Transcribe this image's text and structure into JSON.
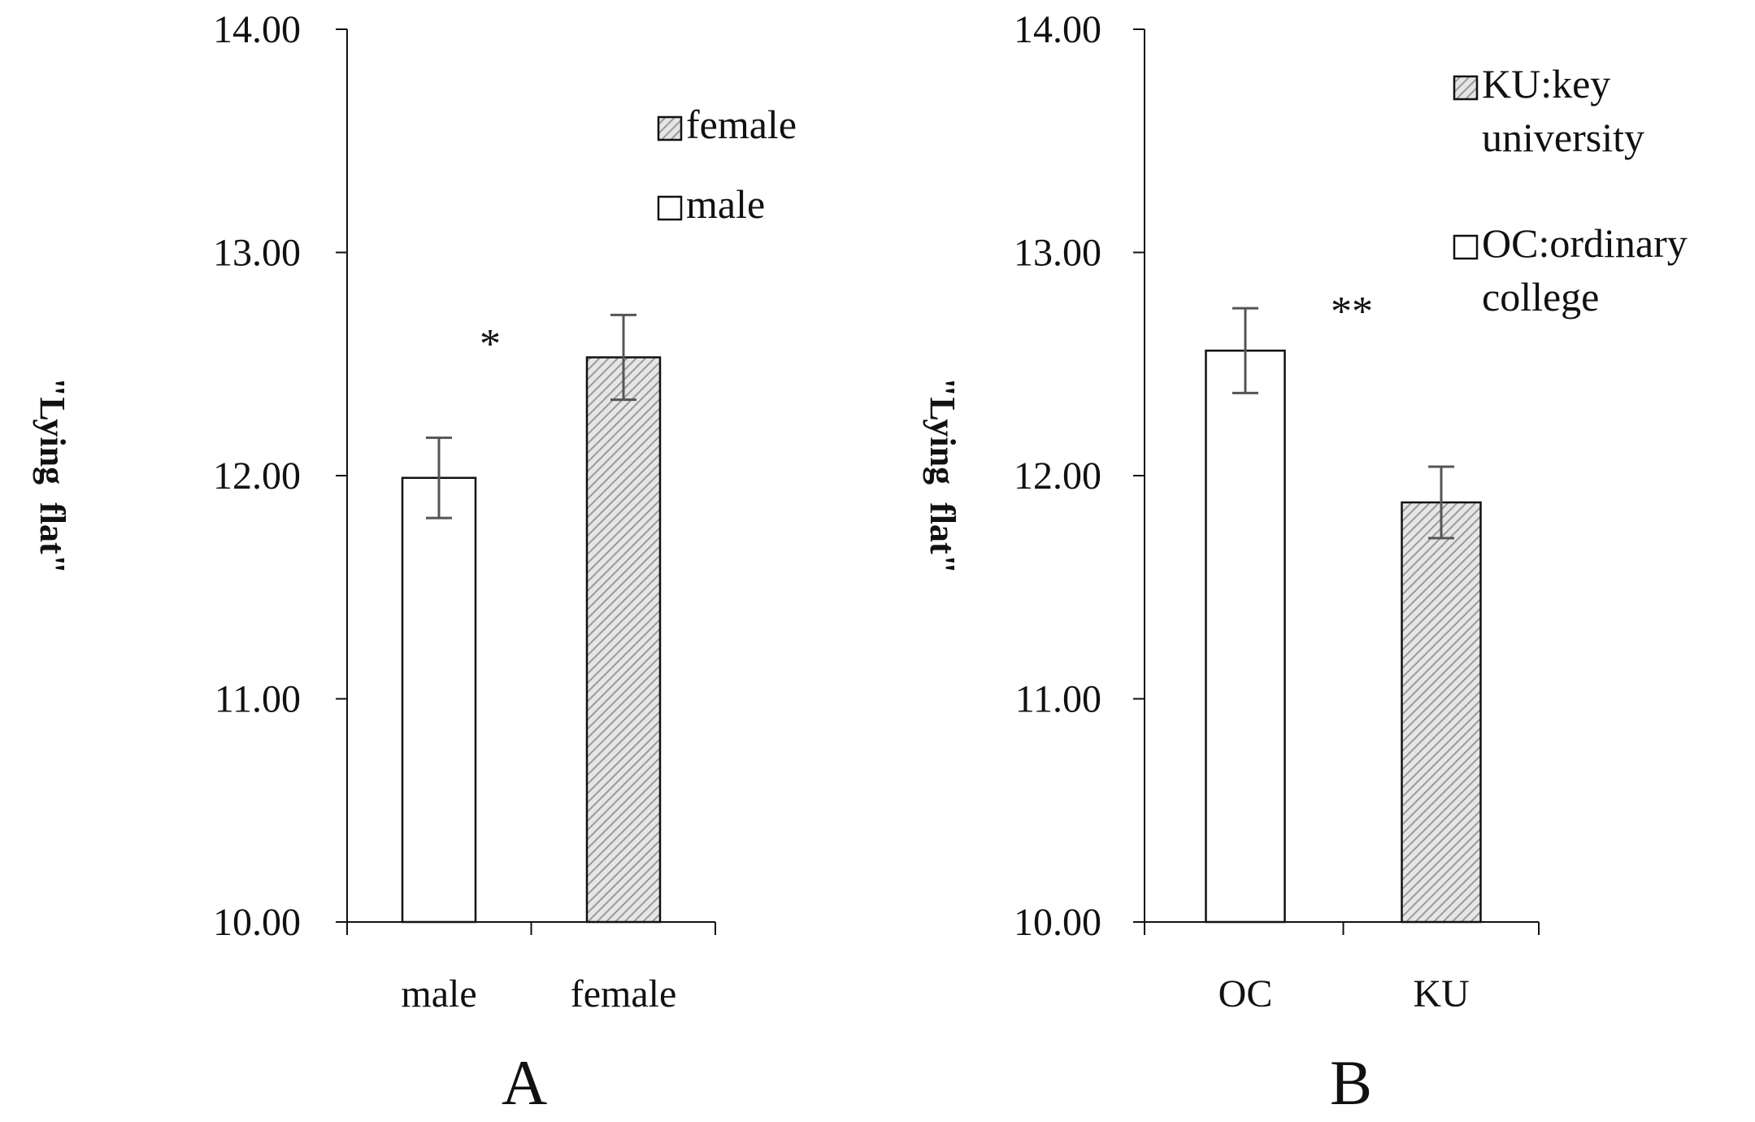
{
  "figure": {
    "hatch_color": "#9a9a9a",
    "hatch_bg": "#e6e6e6",
    "line_color": "#111111",
    "errorbar_color": "#555555"
  },
  "chart_data": [
    {
      "type": "bar",
      "panel_label": "A",
      "ylabel": "\"Lying  flat\"",
      "ylim": [
        10.0,
        14.0
      ],
      "yticks": [
        "10.00",
        "11.00",
        "12.00",
        "13.00",
        "14.00"
      ],
      "ytick_values": [
        10,
        11,
        12,
        13,
        14
      ],
      "categories": [
        "male",
        "female"
      ],
      "values": [
        11.99,
        12.53
      ],
      "errors": [
        0.18,
        0.19
      ],
      "fills": [
        "plain",
        "hatched"
      ],
      "significance": "*",
      "legend": [
        {
          "label": "female",
          "fill": "hatched"
        },
        {
          "label": "male",
          "fill": "plain"
        }
      ],
      "legend_lines": [
        [
          "female"
        ],
        [
          "male"
        ]
      ]
    },
    {
      "type": "bar",
      "panel_label": "B",
      "ylabel": "\"Lying  flat\"",
      "ylim": [
        10.0,
        14.0
      ],
      "yticks": [
        "10.00",
        "11.00",
        "12.00",
        "13.00",
        "14.00"
      ],
      "ytick_values": [
        10,
        11,
        12,
        13,
        14
      ],
      "categories": [
        "OC",
        "KU"
      ],
      "values": [
        12.56,
        11.88
      ],
      "errors": [
        0.19,
        0.16
      ],
      "fills": [
        "plain",
        "hatched"
      ],
      "significance": "**",
      "legend": [
        {
          "label": "KU:key university",
          "fill": "hatched"
        },
        {
          "label": "OC:ordinary college",
          "fill": "plain"
        }
      ],
      "legend_lines": [
        [
          "KU:key",
          "university"
        ],
        [
          "OC:ordinary",
          "college"
        ]
      ]
    }
  ]
}
